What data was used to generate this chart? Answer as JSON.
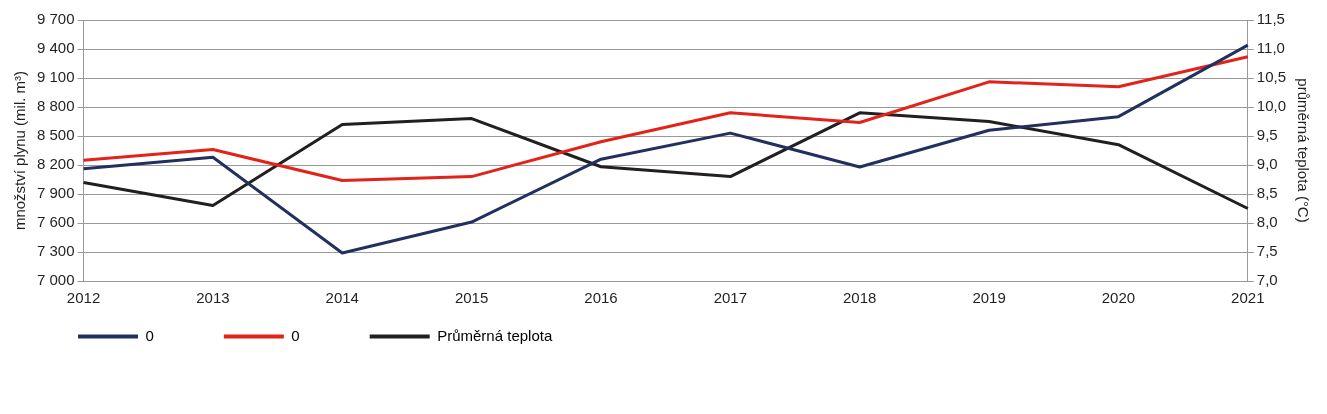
{
  "chart_data": {
    "type": "line",
    "categories": [
      "2012",
      "2013",
      "2014",
      "2015",
      "2016",
      "2017",
      "2018",
      "2019",
      "2020",
      "2021"
    ],
    "ylabel": "množství plynu (mil. m³)",
    "y2label": "průměrná teplota (°C)",
    "ylim": [
      7000,
      9700
    ],
    "yticks": [
      {
        "value": 7000,
        "label": "7 000"
      },
      {
        "value": 7300,
        "label": "7 300"
      },
      {
        "value": 7600,
        "label": "7 600"
      },
      {
        "value": 7900,
        "label": "7 900"
      },
      {
        "value": 8200,
        "label": "8 200"
      },
      {
        "value": 8500,
        "label": "8 500"
      },
      {
        "value": 8800,
        "label": "8 800"
      },
      {
        "value": 9100,
        "label": "9 100"
      },
      {
        "value": 9400,
        "label": "9 400"
      },
      {
        "value": 9700,
        "label": "9 700"
      }
    ],
    "y2lim": [
      7,
      11.5
    ],
    "y2ticks": [
      {
        "value": 7,
        "label": "7,0"
      },
      {
        "value": 7.5,
        "label": "7,5"
      },
      {
        "value": 8,
        "label": "8,0"
      },
      {
        "value": 8.5,
        "label": "8,5"
      },
      {
        "value": 9,
        "label": "9,0"
      },
      {
        "value": 9.5,
        "label": "9,5"
      },
      {
        "value": 10,
        "label": "10,0"
      },
      {
        "value": 10.5,
        "label": "10,5"
      },
      {
        "value": 11,
        "label": "11,0"
      },
      {
        "value": 11.5,
        "label": "11,5"
      }
    ],
    "grid": "y",
    "legend": "bottom left",
    "marker": "none",
    "line_style": "solid",
    "series": [
      {
        "name": "0",
        "color": "#22305f",
        "values": [
          8160,
          8280,
          7290,
          7610,
          8260,
          8530,
          8180,
          8560,
          8700,
          9440
        ]
      },
      {
        "name": "0",
        "color": "#e2231a",
        "values": [
          8250,
          8360,
          8040,
          8080,
          8440,
          8740,
          8640,
          9060,
          9010,
          9320
        ]
      },
      {
        "name": "Průměrná teplota",
        "color": "#231f20",
        "axis": "y2",
        "values": [
          8.7,
          8.3,
          9.7,
          9.8,
          8.97,
          8.8,
          9.9,
          9.75,
          9.35,
          8.25
        ]
      }
    ]
  }
}
